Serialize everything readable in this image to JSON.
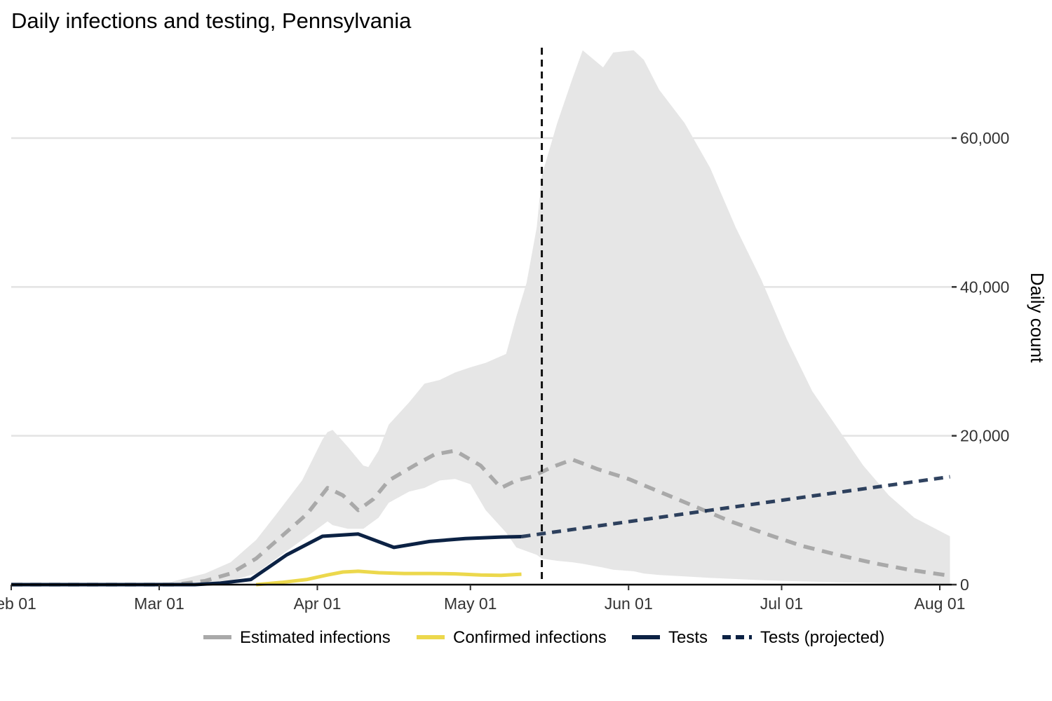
{
  "chart_data": {
    "type": "line",
    "title": "Daily infections and testing, Pennsylvania",
    "xlabel": "",
    "ylabel": "Daily count",
    "x_start": "2020-02-01",
    "xlim": [
      "2020-02-01",
      "2020-08-03"
    ],
    "ylim": [
      0,
      72000
    ],
    "x_ticks": [
      {
        "date": "2020-02-01",
        "label": "Feb 01"
      },
      {
        "date": "2020-03-01",
        "label": "Mar 01"
      },
      {
        "date": "2020-04-01",
        "label": "Apr 01"
      },
      {
        "date": "2020-05-01",
        "label": "May 01"
      },
      {
        "date": "2020-06-01",
        "label": "Jun 01"
      },
      {
        "date": "2020-07-01",
        "label": "Jul 01"
      },
      {
        "date": "2020-08-01",
        "label": "Aug 01"
      }
    ],
    "y_ticks": [
      {
        "value": 0,
        "label": "0"
      },
      {
        "value": 20000,
        "label": "20,000"
      },
      {
        "value": 40000,
        "label": "40,000"
      },
      {
        "value": 60000,
        "label": "60,000"
      }
    ],
    "grid": true,
    "y_axis_position": "right",
    "legend_position": "bottom",
    "vline_date": "2020-05-15",
    "band": {
      "name": "Estimated infections range",
      "color": "#e6e6e6",
      "points": [
        [
          "2020-02-01",
          0,
          0
        ],
        [
          "2020-03-03",
          0,
          300
        ],
        [
          "2020-03-10",
          100,
          1500
        ],
        [
          "2020-03-15",
          500,
          3000
        ],
        [
          "2020-03-20",
          1500,
          6000
        ],
        [
          "2020-03-24",
          3500,
          9500
        ],
        [
          "2020-03-29",
          6000,
          14000
        ],
        [
          "2020-04-02",
          8000,
          19500
        ],
        [
          "2020-04-03",
          8500,
          20500
        ],
        [
          "2020-04-04",
          8000,
          20800
        ],
        [
          "2020-04-07",
          7500,
          18500
        ],
        [
          "2020-04-10",
          7500,
          16000
        ],
        [
          "2020-04-11",
          8000,
          15800
        ],
        [
          "2020-04-13",
          9000,
          18000
        ],
        [
          "2020-04-15",
          11000,
          21500
        ],
        [
          "2020-04-19",
          12500,
          24500
        ],
        [
          "2020-04-22",
          13000,
          27000
        ],
        [
          "2020-04-25",
          14000,
          27500
        ],
        [
          "2020-04-28",
          14200,
          28500
        ],
        [
          "2020-05-01",
          13500,
          29200
        ],
        [
          "2020-05-04",
          10000,
          29800
        ],
        [
          "2020-05-08",
          7000,
          31000
        ],
        [
          "2020-05-10",
          5000,
          36000
        ],
        [
          "2020-05-12",
          4500,
          40500
        ],
        [
          "2020-05-14",
          4000,
          48000
        ],
        [
          "2020-05-15",
          3500,
          55000
        ],
        [
          "2020-05-18",
          3200,
          62000
        ],
        [
          "2020-05-21",
          3000,
          68000
        ],
        [
          "2020-05-23",
          2800,
          71800
        ],
        [
          "2020-05-27",
          2300,
          69500
        ],
        [
          "2020-05-29",
          2000,
          71500
        ],
        [
          "2020-06-02",
          1800,
          71800
        ],
        [
          "2020-06-04",
          1500,
          70500
        ],
        [
          "2020-06-07",
          1300,
          66500
        ],
        [
          "2020-06-12",
          1100,
          62000
        ],
        [
          "2020-06-17",
          900,
          56000
        ],
        [
          "2020-06-22",
          750,
          48000
        ],
        [
          "2020-06-27",
          600,
          41000
        ],
        [
          "2020-07-02",
          500,
          33000
        ],
        [
          "2020-07-07",
          400,
          26000
        ],
        [
          "2020-07-12",
          300,
          21000
        ],
        [
          "2020-07-17",
          250,
          16000
        ],
        [
          "2020-07-22",
          200,
          12000
        ],
        [
          "2020-07-27",
          150,
          9000
        ],
        [
          "2020-08-03",
          100,
          6500
        ]
      ]
    },
    "series": [
      {
        "name": "Estimated infections",
        "color": "#a9a9a9",
        "dash": "dashed",
        "points": [
          [
            "2020-02-01",
            0
          ],
          [
            "2020-03-04",
            0
          ],
          [
            "2020-03-10",
            500
          ],
          [
            "2020-03-15",
            1500
          ],
          [
            "2020-03-20",
            3500
          ],
          [
            "2020-03-25",
            6500
          ],
          [
            "2020-03-30",
            9500
          ],
          [
            "2020-04-03",
            13000
          ],
          [
            "2020-04-06",
            12000
          ],
          [
            "2020-04-09",
            10000
          ],
          [
            "2020-04-12",
            11500
          ],
          [
            "2020-04-15",
            14000
          ],
          [
            "2020-04-20",
            16000
          ],
          [
            "2020-04-24",
            17500
          ],
          [
            "2020-04-28",
            18000
          ],
          [
            "2020-05-03",
            16000
          ],
          [
            "2020-05-07",
            13000
          ],
          [
            "2020-05-10",
            14000
          ],
          [
            "2020-05-13",
            14500
          ],
          [
            "2020-05-17",
            15800
          ],
          [
            "2020-05-21",
            16800
          ],
          [
            "2020-05-26",
            15500
          ],
          [
            "2020-06-01",
            14200
          ],
          [
            "2020-06-07",
            12500
          ],
          [
            "2020-06-14",
            10500
          ],
          [
            "2020-06-21",
            8500
          ],
          [
            "2020-06-28",
            6800
          ],
          [
            "2020-07-05",
            5200
          ],
          [
            "2020-07-12",
            4000
          ],
          [
            "2020-07-19",
            2900
          ],
          [
            "2020-07-26",
            2000
          ],
          [
            "2020-08-03",
            1200
          ]
        ]
      },
      {
        "name": "Confirmed infections",
        "color": "#ecd84c",
        "dash": "solid",
        "points": [
          [
            "2020-03-20",
            0
          ],
          [
            "2020-03-25",
            300
          ],
          [
            "2020-03-30",
            700
          ],
          [
            "2020-04-03",
            1300
          ],
          [
            "2020-04-06",
            1700
          ],
          [
            "2020-04-09",
            1800
          ],
          [
            "2020-04-13",
            1600
          ],
          [
            "2020-04-18",
            1500
          ],
          [
            "2020-04-23",
            1500
          ],
          [
            "2020-04-28",
            1450
          ],
          [
            "2020-05-03",
            1300
          ],
          [
            "2020-05-07",
            1250
          ],
          [
            "2020-05-11",
            1400
          ]
        ]
      },
      {
        "name": "Tests",
        "color": "#0c2244",
        "dash": "solid",
        "points": [
          [
            "2020-02-01",
            0
          ],
          [
            "2020-03-08",
            0
          ],
          [
            "2020-03-13",
            200
          ],
          [
            "2020-03-19",
            700
          ],
          [
            "2020-03-26",
            4000
          ],
          [
            "2020-04-02",
            6500
          ],
          [
            "2020-04-09",
            6800
          ],
          [
            "2020-04-16",
            5000
          ],
          [
            "2020-04-23",
            5800
          ],
          [
            "2020-04-30",
            6200
          ],
          [
            "2020-05-07",
            6400
          ],
          [
            "2020-05-11",
            6450
          ]
        ]
      },
      {
        "name": "Tests (projected)",
        "color": "#0c2244",
        "dash": "dashed",
        "points": [
          [
            "2020-05-11",
            6450
          ],
          [
            "2020-08-03",
            14500
          ]
        ]
      }
    ]
  }
}
